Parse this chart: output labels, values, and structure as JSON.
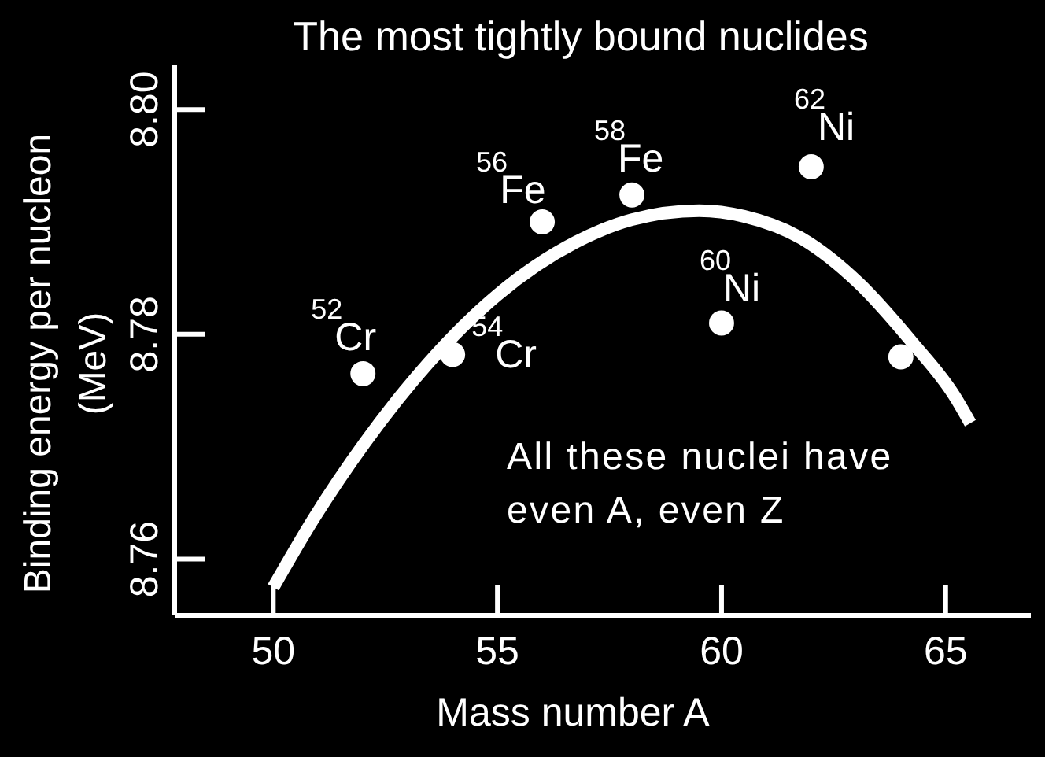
{
  "chart_data": {
    "type": "scatter",
    "title": "The most tightly bound nuclides",
    "xlabel": "Mass number A",
    "ylabel": "Binding energy per nucleon\n(MeV)",
    "series": [
      {
        "type": "line",
        "color": "#ffffff",
        "marker": "none",
        "x": [
          50,
          50.9,
          52.05,
          53.45,
          55.0,
          56.75,
          58.0,
          59.5,
          60.5,
          61.8,
          63.05,
          64.25,
          65.2,
          65.55
        ],
        "values": [
          8.7575,
          8.7636,
          8.7704,
          8.7774,
          8.7835,
          8.7882,
          8.7902,
          8.791,
          8.7905,
          8.7885,
          8.7846,
          8.7793,
          8.7745,
          8.7721
        ]
      },
      {
        "color": "#ffffff",
        "x": [
          52,
          54,
          56,
          58,
          60,
          62,
          64
        ],
        "values": [
          8.7765,
          8.7782,
          8.79,
          8.7924,
          8.781,
          8.7949,
          8.778
        ]
      }
    ],
    "marker": "circle",
    "xlim": [
      47.8,
      66.9
    ],
    "xticks": [
      50,
      55,
      60,
      65
    ],
    "ylim": [
      8.755,
      8.804
    ],
    "yticks": [
      8.76,
      8.78,
      {
        "value": 8.8,
        "label": "8.80"
      }
    ],
    "annotations": [
      {
        "text": "$^{52}$Cr",
        "x": 52,
        "y": 8.7765
      },
      {
        "text": "$^{54}$Cr",
        "x": 54,
        "y": 8.7782
      },
      {
        "text": "$^{56}$Fe",
        "x": 56,
        "y": 8.79
      },
      {
        "text": "$^{58}$Fe",
        "x": 58,
        "y": 8.7924
      },
      {
        "text": "$^{60}$Ni",
        "x": 60,
        "y": 8.781
      },
      {
        "text": "$^{62}$Ni",
        "x": 62,
        "y": 8.7949
      },
      "All these nuclei have\neven A, even Z"
    ]
  }
}
